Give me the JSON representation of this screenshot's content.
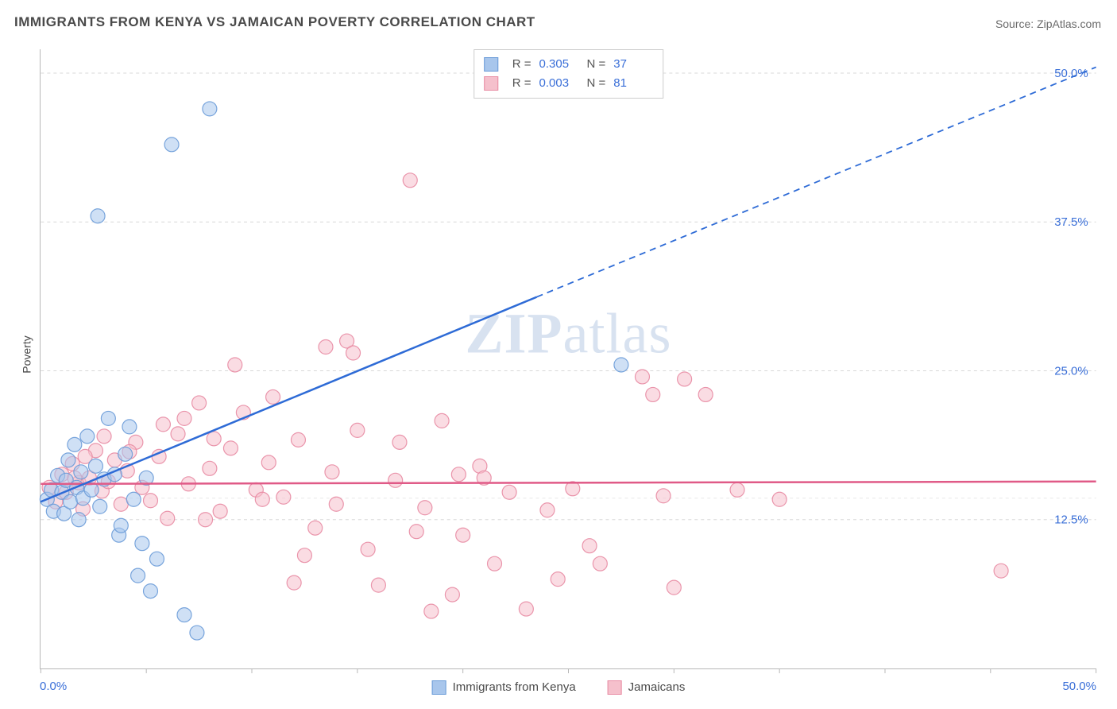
{
  "title": "IMMIGRANTS FROM KENYA VS JAMAICAN POVERTY CORRELATION CHART",
  "source": "Source: ZipAtlas.com",
  "ylabel": "Poverty",
  "watermark_bold": "ZIP",
  "watermark_rest": "atlas",
  "colors": {
    "series1_fill": "#a8c6ec",
    "series1_stroke": "#6a9bd8",
    "series2_fill": "#f5c0cc",
    "series2_stroke": "#e88ba3",
    "trend1": "#2e6bd6",
    "trend2": "#e05a87",
    "axis_text": "#3a6fd8",
    "grid": "#d8d8d8"
  },
  "series1": {
    "name": "Immigrants from Kenya",
    "R": "0.305",
    "N": "37"
  },
  "series2": {
    "name": "Jamaicans",
    "R": "0.003",
    "N": "81"
  },
  "xlim": [
    0,
    50
  ],
  "ylim": [
    0,
    52
  ],
  "y_ticks": [
    {
      "val": 12.5,
      "label": "12.5%"
    },
    {
      "val": 25.0,
      "label": "25.0%"
    },
    {
      "val": 37.5,
      "label": "37.5%"
    },
    {
      "val": 50.0,
      "label": "50.0%"
    }
  ],
  "x_ticks": [
    0,
    5,
    10,
    15,
    20,
    25,
    30,
    35,
    40,
    45,
    50
  ],
  "x_origin_label": "0.0%",
  "x_max_label": "50.0%",
  "marker_radius": 9,
  "marker_opacity": 0.55,
  "trend1_line": {
    "x1": 0,
    "y1": 14.0,
    "x2": 23.5,
    "y2": 31.2,
    "dash_x2": 50,
    "dash_y2": 50.5
  },
  "trend2_line": {
    "x1": 0,
    "y1": 15.5,
    "x2": 50,
    "y2": 15.7
  },
  "kenya_points": [
    [
      0.3,
      14.2
    ],
    [
      0.5,
      15.0
    ],
    [
      0.6,
      13.2
    ],
    [
      0.8,
      16.2
    ],
    [
      1.0,
      14.8
    ],
    [
      1.1,
      13.0
    ],
    [
      1.2,
      15.8
    ],
    [
      1.3,
      17.5
    ],
    [
      1.4,
      14.0
    ],
    [
      1.6,
      18.8
    ],
    [
      1.7,
      15.2
    ],
    [
      1.8,
      12.5
    ],
    [
      1.9,
      16.5
    ],
    [
      2.0,
      14.3
    ],
    [
      2.2,
      19.5
    ],
    [
      2.4,
      15.0
    ],
    [
      2.6,
      17.0
    ],
    [
      2.8,
      13.6
    ],
    [
      3.0,
      15.9
    ],
    [
      3.2,
      21.0
    ],
    [
      3.5,
      16.3
    ],
    [
      3.7,
      11.2
    ],
    [
      4.0,
      18.0
    ],
    [
      4.2,
      20.3
    ],
    [
      4.4,
      14.2
    ],
    [
      4.8,
      10.5
    ],
    [
      5.0,
      16.0
    ],
    [
      5.5,
      9.2
    ],
    [
      6.2,
      44.0
    ],
    [
      2.7,
      38.0
    ],
    [
      3.8,
      12.0
    ],
    [
      6.8,
      4.5
    ],
    [
      7.4,
      3.0
    ],
    [
      8.0,
      47.0
    ],
    [
      27.5,
      25.5
    ],
    [
      4.6,
      7.8
    ],
    [
      5.2,
      6.5
    ]
  ],
  "jamaica_points": [
    [
      0.4,
      15.2
    ],
    [
      0.7,
      14.0
    ],
    [
      1.0,
      16.3
    ],
    [
      1.2,
      14.8
    ],
    [
      1.5,
      17.2
    ],
    [
      1.8,
      15.6
    ],
    [
      2.0,
      13.4
    ],
    [
      2.3,
      16.0
    ],
    [
      2.6,
      18.3
    ],
    [
      2.9,
      14.9
    ],
    [
      3.2,
      15.7
    ],
    [
      3.5,
      17.5
    ],
    [
      3.8,
      13.8
    ],
    [
      4.1,
      16.6
    ],
    [
      4.5,
      19.0
    ],
    [
      4.8,
      15.2
    ],
    [
      5.2,
      14.1
    ],
    [
      5.6,
      17.8
    ],
    [
      6.0,
      12.6
    ],
    [
      6.5,
      19.7
    ],
    [
      7.0,
      15.5
    ],
    [
      7.5,
      22.3
    ],
    [
      8.0,
      16.8
    ],
    [
      8.5,
      13.2
    ],
    [
      9.0,
      18.5
    ],
    [
      9.6,
      21.5
    ],
    [
      10.2,
      15.0
    ],
    [
      10.8,
      17.3
    ],
    [
      11.5,
      14.4
    ],
    [
      12.2,
      19.2
    ],
    [
      13.0,
      11.8
    ],
    [
      13.8,
      16.5
    ],
    [
      14.5,
      27.5
    ],
    [
      15.0,
      20.0
    ],
    [
      15.5,
      10.0
    ],
    [
      16.0,
      7.0
    ],
    [
      16.8,
      15.8
    ],
    [
      17.5,
      41.0
    ],
    [
      18.2,
      13.5
    ],
    [
      19.0,
      20.8
    ],
    [
      19.5,
      6.2
    ],
    [
      20.0,
      11.2
    ],
    [
      20.8,
      17.0
    ],
    [
      21.5,
      8.8
    ],
    [
      22.2,
      14.8
    ],
    [
      23.0,
      5.0
    ],
    [
      24.0,
      13.3
    ],
    [
      24.5,
      7.5
    ],
    [
      25.2,
      15.1
    ],
    [
      26.0,
      10.3
    ],
    [
      28.5,
      24.5
    ],
    [
      29.5,
      14.5
    ],
    [
      30.0,
      6.8
    ],
    [
      31.5,
      23.0
    ],
    [
      33.0,
      15.0
    ],
    [
      35.0,
      14.2
    ],
    [
      45.5,
      8.2
    ],
    [
      13.5,
      27.0
    ],
    [
      11.0,
      22.8
    ],
    [
      9.2,
      25.5
    ],
    [
      8.2,
      19.3
    ],
    [
      6.8,
      21.0
    ],
    [
      5.8,
      20.5
    ],
    [
      4.2,
      18.2
    ],
    [
      3.0,
      19.5
    ],
    [
      2.1,
      17.8
    ],
    [
      1.6,
      16.0
    ],
    [
      7.8,
      12.5
    ],
    [
      12.5,
      9.5
    ],
    [
      14.0,
      13.8
    ],
    [
      17.0,
      19.0
    ],
    [
      19.8,
      16.3
    ],
    [
      29.0,
      23.0
    ],
    [
      17.8,
      11.5
    ],
    [
      21.0,
      16.0
    ],
    [
      26.5,
      8.8
    ],
    [
      18.5,
      4.8
    ],
    [
      14.8,
      26.5
    ],
    [
      10.5,
      14.2
    ],
    [
      30.5,
      24.3
    ],
    [
      12.0,
      7.2
    ]
  ]
}
